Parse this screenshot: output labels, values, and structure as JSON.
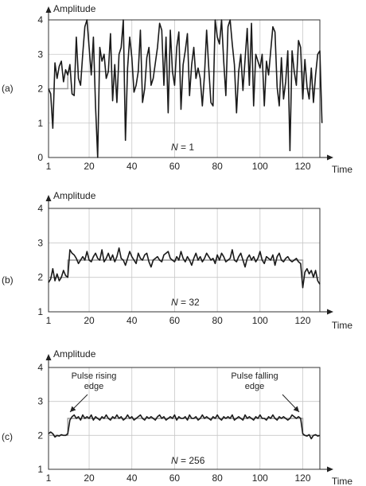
{
  "chart_data": [
    {
      "type": "line",
      "panel_label": "(a)",
      "ylabel": "Amplitude",
      "xlabel": "Time",
      "annotation_var": "N",
      "annotation_value": " = 1",
      "xlim": [
        1,
        128
      ],
      "ylim": [
        0,
        4
      ],
      "xticks": [
        1,
        20,
        40,
        60,
        80,
        100,
        120
      ],
      "yticks": [
        0,
        1,
        2,
        3,
        4
      ],
      "grid": true,
      "pulse": {
        "low": 2.0,
        "high": 2.5,
        "rise": 10,
        "fall": 120
      },
      "series": [
        {
          "values": [
            2.0,
            1.85,
            0.85,
            2.75,
            2.3,
            2.65,
            2.8,
            2.2,
            2.55,
            2.4,
            2.7,
            1.85,
            1.8,
            3.5,
            2.3,
            2.1,
            3.0,
            3.8,
            4.05,
            3.2,
            2.4,
            3.5,
            1.5,
            0.0,
            3.2,
            2.8,
            3.0,
            2.3,
            2.5,
            3.6,
            1.65,
            2.7,
            1.6,
            3.0,
            3.2,
            4.0,
            0.5,
            2.6,
            3.5,
            2.9,
            1.9,
            2.1,
            2.5,
            3.7,
            1.6,
            2.0,
            2.9,
            3.2,
            2.1,
            2.3,
            2.75,
            3.2,
            3.9,
            3.7,
            2.1,
            3.5,
            1.3,
            3.7,
            2.5,
            2.1,
            3.2,
            3.65,
            1.4,
            2.7,
            3.1,
            3.6,
            1.8,
            2.7,
            3.2,
            2.3,
            2.6,
            2.3,
            1.5,
            2.4,
            3.7,
            2.6,
            1.6,
            1.5,
            4.0,
            3.5,
            3.3,
            4.0,
            2.8,
            1.8,
            3.8,
            4.0,
            3.3,
            2.7,
            1.3,
            2.5,
            3.0,
            1.95,
            2.85,
            3.75,
            2.1,
            3.9,
            1.5,
            3.0,
            2.8,
            2.6,
            3.0,
            1.5,
            2.8,
            2.4,
            3.1,
            3.8,
            3.65,
            2.05,
            1.5,
            2.9,
            1.7,
            2.2,
            3.1,
            0.2,
            3.1,
            2.5,
            2.1,
            3.4,
            3.2,
            1.7,
            2.85,
            2.05,
            1.7,
            2.6,
            1.6,
            2.4,
            3.0,
            3.1,
            1.0
          ]
        }
      ]
    },
    {
      "type": "line",
      "panel_label": "(b)",
      "ylabel": "Amplitude",
      "xlabel": "Time",
      "annotation_var": "N",
      "annotation_value": " = 32",
      "xlim": [
        1,
        128
      ],
      "ylim": [
        1,
        4
      ],
      "xticks": [
        1,
        20,
        40,
        60,
        80,
        100,
        120
      ],
      "yticks": [
        1,
        2,
        3,
        4
      ],
      "grid": true,
      "pulse": {
        "low": 2.0,
        "high": 2.5,
        "rise": 10,
        "fall": 120
      },
      "series": [
        {
          "values": [
            1.85,
            1.95,
            2.25,
            1.9,
            2.1,
            1.9,
            2.0,
            2.2,
            2.05,
            2.0,
            2.8,
            2.7,
            2.65,
            2.55,
            2.4,
            2.5,
            2.6,
            2.5,
            2.75,
            2.5,
            2.45,
            2.6,
            2.7,
            2.55,
            2.5,
            2.8,
            2.45,
            2.55,
            2.7,
            2.5,
            2.65,
            2.45,
            2.6,
            2.85,
            2.55,
            2.5,
            2.35,
            2.55,
            2.75,
            2.6,
            2.5,
            2.4,
            2.7,
            2.55,
            2.5,
            2.65,
            2.7,
            2.45,
            2.3,
            2.5,
            2.55,
            2.6,
            2.5,
            2.45,
            2.65,
            2.7,
            2.75,
            2.55,
            2.5,
            2.45,
            2.6,
            2.5,
            2.75,
            2.55,
            2.45,
            2.6,
            2.5,
            2.35,
            2.55,
            2.7,
            2.5,
            2.6,
            2.45,
            2.55,
            2.7,
            2.6,
            2.5,
            2.55,
            2.4,
            2.65,
            2.5,
            2.7,
            2.6,
            2.45,
            2.5,
            2.55,
            2.8,
            2.5,
            2.45,
            2.6,
            2.7,
            2.5,
            2.3,
            2.55,
            2.65,
            2.5,
            2.6,
            2.45,
            2.55,
            2.75,
            2.5,
            2.4,
            2.6,
            2.55,
            2.5,
            2.65,
            2.35,
            2.6,
            2.7,
            2.5,
            2.45,
            2.55,
            2.6,
            2.5,
            2.45,
            2.5,
            2.55,
            2.45,
            2.4,
            1.7,
            2.15,
            2.25,
            2.1,
            2.2,
            2.0,
            2.2,
            1.9,
            1.8
          ]
        }
      ]
    },
    {
      "type": "line",
      "panel_label": "(c)",
      "ylabel": "Amplitude",
      "xlabel": "Time",
      "annotation_var": "N",
      "annotation_value": " = 256",
      "xlim": [
        1,
        128
      ],
      "ylim": [
        1,
        4
      ],
      "xticks": [
        1,
        20,
        40,
        60,
        80,
        100,
        120
      ],
      "yticks": [
        1,
        2,
        3,
        4
      ],
      "grid": true,
      "pulse": {
        "low": 2.0,
        "high": 2.5,
        "rise": 10,
        "fall": 120
      },
      "annotations": [
        {
          "text_lines": [
            "Pulse rising",
            "edge"
          ],
          "at_x": 10,
          "at_y": 2.55
        },
        {
          "text_lines": [
            "Pulse falling",
            "edge"
          ],
          "at_x": 119,
          "at_y": 2.55
        }
      ],
      "series": [
        {
          "values": [
            2.05,
            2.1,
            2.05,
            1.95,
            2.0,
            1.98,
            2.02,
            2.0,
            2.0,
            2.05,
            2.45,
            2.55,
            2.6,
            2.5,
            2.55,
            2.45,
            2.6,
            2.5,
            2.55,
            2.5,
            2.6,
            2.45,
            2.55,
            2.5,
            2.45,
            2.55,
            2.5,
            2.6,
            2.5,
            2.45,
            2.55,
            2.5,
            2.6,
            2.5,
            2.55,
            2.45,
            2.5,
            2.6,
            2.5,
            2.55,
            2.45,
            2.5,
            2.55,
            2.6,
            2.5,
            2.45,
            2.55,
            2.5,
            2.55,
            2.5,
            2.45,
            2.55,
            2.6,
            2.5,
            2.55,
            2.45,
            2.5,
            2.55,
            2.5,
            2.6,
            2.45,
            2.55,
            2.5,
            2.5,
            2.55,
            2.45,
            2.6,
            2.5,
            2.5,
            2.55,
            2.45,
            2.5,
            2.6,
            2.5,
            2.55,
            2.5,
            2.45,
            2.55,
            2.5,
            2.6,
            2.5,
            2.45,
            2.55,
            2.5,
            2.55,
            2.5,
            2.6,
            2.45,
            2.5,
            2.55,
            2.5,
            2.45,
            2.6,
            2.5,
            2.55,
            2.5,
            2.45,
            2.55,
            2.5,
            2.6,
            2.5,
            2.5,
            2.45,
            2.55,
            2.5,
            2.6,
            2.5,
            2.45,
            2.55,
            2.5,
            2.55,
            2.5,
            2.45,
            2.5,
            2.6,
            2.55,
            2.5,
            2.55,
            2.5,
            2.05,
            2.0,
            1.98,
            2.02,
            1.9,
            2.0,
            2.02,
            1.98,
            2.0
          ]
        }
      ]
    }
  ]
}
